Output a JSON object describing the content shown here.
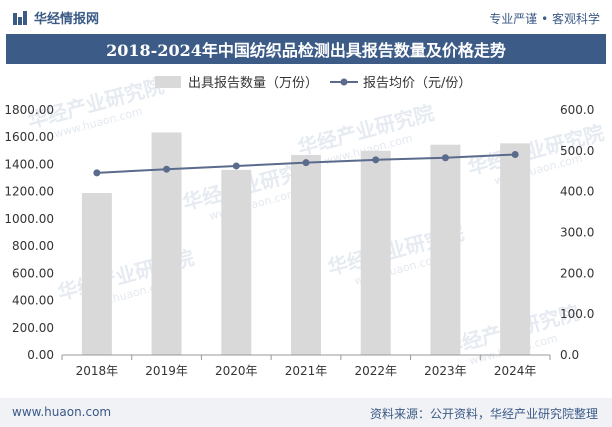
{
  "header": {
    "brand": "华经情报网",
    "slogan": "专业严谨 • 客观科学"
  },
  "title": "2018-2024年中国纺织品检测出具报告数量及价格走势",
  "footer": {
    "url": "www.huaon.com",
    "source": "资料来源：公开资料，华经产业研究院整理"
  },
  "watermark": {
    "text": "华经产业研究院",
    "url": "www.huaon.com"
  },
  "colors": {
    "bar": "#d9d9d9",
    "line": "#5b6b8c",
    "title_bg": "#3c5b87",
    "brand": "#3b5a86"
  },
  "chart_data": {
    "type": "bar+line",
    "categories": [
      "2018年",
      "2019年",
      "2020年",
      "2021年",
      "2022年",
      "2023年",
      "2024年"
    ],
    "series": [
      {
        "name": "出具报告数量（万份）",
        "type": "bar",
        "axis": "left",
        "values": [
          1190,
          1635,
          1360,
          1470,
          1500,
          1545,
          1555
        ]
      },
      {
        "name": "报告均价（元/份）",
        "type": "line",
        "axis": "right",
        "values": [
          446,
          455,
          463,
          471,
          478,
          483,
          491
        ]
      }
    ],
    "y_left": {
      "min": 0,
      "max": 1800,
      "step": 200,
      "tick_labels": [
        "0.00",
        "200.00",
        "400.00",
        "600.00",
        "800.00",
        "1000.00",
        "1200.00",
        "1400.00",
        "1600.00",
        "1800.00"
      ]
    },
    "y_right": {
      "min": 0,
      "max": 600,
      "step": 100,
      "tick_labels": [
        "0.0",
        "100.0",
        "200.0",
        "300.0",
        "400.0",
        "500.0",
        "600.0"
      ]
    },
    "legend_position": "top-center",
    "grid": false
  }
}
